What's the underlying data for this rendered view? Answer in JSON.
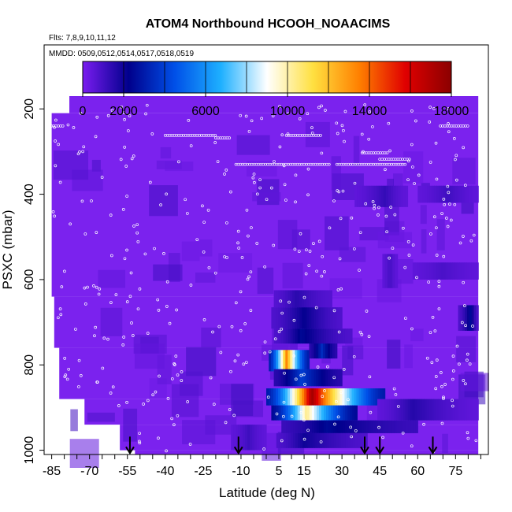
{
  "chart_data": {
    "type": "heatmap",
    "title": "ATOM4 Northbound HCOOH_NOAACIMS",
    "flights_label": "Flts: 7,8,9,10,11,12",
    "dates_label": "MMDD: 0509,0512,0514,0517,0518,0519",
    "xlabel": "Latitude (deg N)",
    "ylabel": "PSXC (mbar)",
    "xlim": [
      -88,
      88
    ],
    "ylim": [
      1010,
      50
    ],
    "x_ticks": [
      -85,
      -80,
      -75,
      -70,
      -65,
      -60,
      -55,
      -50,
      -45,
      -40,
      -35,
      -30,
      -25,
      -20,
      -15,
      -10,
      -5,
      0,
      5,
      10,
      15,
      20,
      25,
      30,
      35,
      40,
      45,
      50,
      55,
      60,
      65,
      70,
      75,
      80,
      85
    ],
    "x_tick_labels": [
      "-85",
      "-70",
      "-55",
      "-40",
      "-25",
      "-10",
      "5",
      "15",
      "30",
      "45",
      "60",
      "75"
    ],
    "x_tick_label_values": [
      -85,
      -70,
      -55,
      -40,
      -25,
      -10,
      5,
      15,
      30,
      45,
      60,
      75
    ],
    "y_ticks": [
      200,
      400,
      600,
      800,
      1000
    ],
    "y_tick_labels": [
      "200",
      "400",
      "600",
      "800",
      "1000"
    ],
    "colorbar": {
      "min": 0,
      "max": 18000,
      "tick_values": [
        0,
        2000,
        6000,
        10000,
        14000,
        18000
      ],
      "tick_labels": [
        "0",
        "2000",
        "6000",
        "10000",
        "14000",
        "18000"
      ],
      "colors": [
        "#7a1cf0",
        "#00008c",
        "#0050e8",
        "#1eb0ff",
        "#ffffff",
        "#ffe040",
        "#ff8000",
        "#e00000",
        "#8b0000"
      ]
    },
    "background_value": 250,
    "background_color": "#7b22ee",
    "coverage": [
      {
        "lat": [
          -78,
          84
        ],
        "p": [
          170,
          210
        ]
      },
      {
        "lat": [
          -85,
          84
        ],
        "p": [
          210,
          640
        ]
      },
      {
        "lat": [
          -84,
          84
        ],
        "p": [
          640,
          760
        ]
      },
      {
        "lat": [
          -82,
          84
        ],
        "p": [
          760,
          880
        ]
      },
      {
        "lat": [
          -72,
          84
        ],
        "p": [
          880,
          940
        ]
      },
      {
        "lat": [
          -58,
          84
        ],
        "p": [
          940,
          1000
        ]
      },
      {
        "lat": [
          -52,
          84
        ],
        "p": [
          1000,
          1010
        ]
      }
    ],
    "features": [
      {
        "lat": [
          0,
          47
        ],
        "p": [
          855,
          895
        ],
        "peak_lat": 18,
        "peak_value": 17500,
        "edge_value": 3000
      },
      {
        "lat": [
          2,
          36
        ],
        "p": [
          895,
          930
        ],
        "peak_lat": 16,
        "peak_value": 10500,
        "edge_value": 2500
      },
      {
        "lat": [
          1,
          17
        ],
        "p": [
          765,
          815
        ],
        "peak_lat": 8,
        "peak_value": 13500,
        "edge_value": 3000
      },
      {
        "lat": [
          17,
          28
        ],
        "p": [
          745,
          785
        ],
        "peak_lat": 22,
        "peak_value": 3500,
        "edge_value": 1500
      },
      {
        "lat": [
          3,
          30
        ],
        "p": [
          810,
          850
        ],
        "peak_lat": 14,
        "peak_value": 4000,
        "edge_value": 1500
      },
      {
        "lat": [
          6,
          60
        ],
        "p": [
          930,
          960
        ],
        "peak_lat": 24,
        "peak_value": 2500,
        "edge_value": 1200
      },
      {
        "lat": [
          4,
          40
        ],
        "p": [
          960,
          995
        ],
        "peak_lat": 15,
        "peak_value": 2000,
        "edge_value": 800
      },
      {
        "lat": [
          2,
          30
        ],
        "p": [
          665,
          715
        ],
        "peak_lat": 15,
        "peak_value": 2200,
        "edge_value": 800
      },
      {
        "lat": [
          3,
          34
        ],
        "p": [
          715,
          750
        ],
        "peak_lat": 14,
        "peak_value": 2500,
        "edge_value": 800
      },
      {
        "lat": [
          3,
          26
        ],
        "p": [
          625,
          665
        ],
        "peak_lat": 12,
        "peak_value": 1500,
        "edge_value": 700
      },
      {
        "lat": [
          76,
          84
        ],
        "p": [
          660,
          720
        ],
        "peak_lat": 81,
        "peak_value": 2600,
        "edge_value": 800
      },
      {
        "lat": [
          44,
          84
        ],
        "p": [
          880,
          930
        ],
        "peak_lat": 58,
        "peak_value": 1600,
        "edge_value": 500
      },
      {
        "lat": [
          35,
          56
        ],
        "p": [
          380,
          430
        ],
        "peak_lat": 47,
        "peak_value": 1300,
        "edge_value": 500
      },
      {
        "lat": [
          60,
          84
        ],
        "p": [
          380,
          420
        ],
        "peak_lat": 72,
        "peak_value": 1100,
        "edge_value": 500
      },
      {
        "lat": [
          46,
          52
        ],
        "p": [
          540,
          620
        ],
        "peak_lat": 49,
        "peak_value": 1000,
        "edge_value": 500
      },
      {
        "lat": [
          -14,
          0
        ],
        "p": [
          940,
          1000
        ],
        "peak_lat": -7,
        "peak_value": 1100,
        "edge_value": 500
      },
      {
        "lat": [
          58,
          84
        ],
        "p": [
          560,
          600
        ],
        "peak_lat": 70,
        "peak_value": 900,
        "edge_value": 500
      }
    ],
    "arrows_lat": [
      -54,
      -11,
      39,
      45,
      66
    ],
    "arrow_tip_pressure": 1005
  }
}
